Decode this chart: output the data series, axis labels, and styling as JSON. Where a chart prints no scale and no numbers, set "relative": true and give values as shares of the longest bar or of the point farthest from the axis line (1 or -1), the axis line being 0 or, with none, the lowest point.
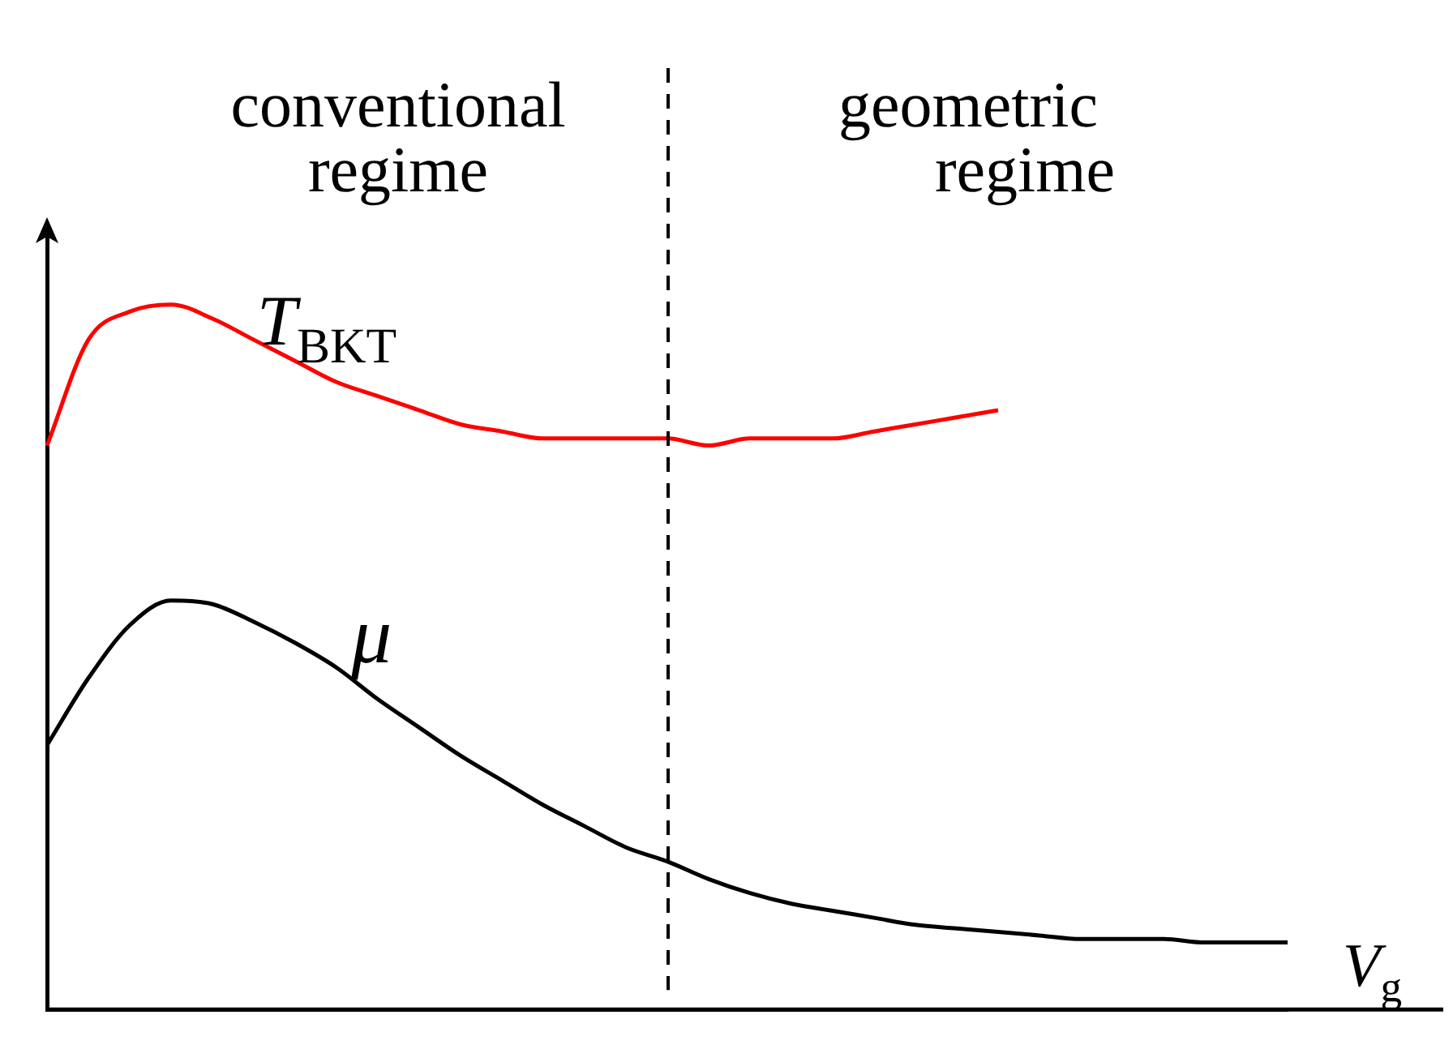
{
  "chart_data": {
    "type": "line",
    "relative": true,
    "xlabel": "V$_{g}$",
    "legend": false,
    "grid": false,
    "marker": "none",
    "categories": [
      null,
      null,
      null,
      null,
      null,
      null,
      null,
      null,
      null,
      null,
      null,
      null,
      null,
      null,
      null,
      null,
      null,
      null,
      null,
      null,
      null,
      null,
      null,
      null,
      null,
      null,
      null,
      null,
      null,
      null,
      null
    ],
    "series": [
      {
        "name": "T$_{BKT}$",
        "color": "#ff0000",
        "values": [
          0.8,
          0.95,
          0.99,
          1.0,
          0.98,
          0.95,
          0.92,
          0.89,
          0.87,
          0.85,
          0.83,
          0.82,
          0.81,
          0.81,
          0.81,
          0.81,
          0.8,
          0.81,
          0.81,
          0.81,
          0.82,
          0.83,
          0.84,
          0.85,
          null,
          null,
          null,
          null,
          null,
          null,
          null
        ]
      },
      {
        "name": "μ",
        "color": "#000000",
        "values": [
          0.375,
          0.47,
          0.545,
          0.58,
          0.575,
          0.55,
          0.52,
          0.485,
          0.44,
          0.4,
          0.36,
          0.325,
          0.29,
          0.26,
          0.23,
          0.21,
          0.185,
          0.165,
          0.15,
          0.14,
          0.13,
          0.12,
          0.115,
          0.11,
          0.105,
          0.1,
          0.1,
          0.1,
          0.095,
          0.095,
          0.095
        ]
      }
    ],
    "annotations": [
      "conventional regime",
      "geometric regime"
    ]
  }
}
